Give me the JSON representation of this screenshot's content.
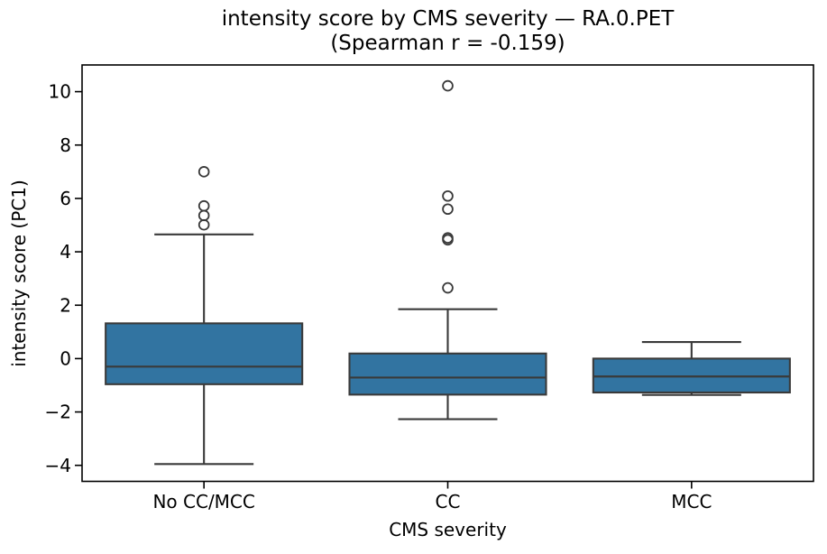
{
  "chart_data": {
    "type": "box",
    "title": "intensity score by CMS severity — RA.0.PET",
    "subtitle": "(Spearman r = -0.159)",
    "spearman_r": -0.159,
    "xlabel": "CMS severity",
    "ylabel": "intensity score (PC1)",
    "categories": [
      "No CC/MCC",
      "CC",
      "MCC"
    ],
    "ylim": [
      -4.6,
      11.0
    ],
    "yticks": [
      10,
      8,
      6,
      4,
      2,
      0,
      -2,
      -4
    ],
    "ytick_labels": [
      "10",
      "8",
      "6",
      "4",
      "2",
      "0",
      "−2",
      "−4"
    ],
    "grid": false,
    "legend": null,
    "boxes": [
      {
        "category": "No CC/MCC",
        "whisker_low": -3.95,
        "q1": -0.96,
        "median": -0.3,
        "q3": 1.32,
        "whisker_high": 4.65,
        "outliers": [
          5.01,
          5.36,
          5.72,
          7.0
        ]
      },
      {
        "category": "CC",
        "whisker_low": -2.27,
        "q1": -1.35,
        "median": -0.71,
        "q3": 0.19,
        "whisker_high": 1.85,
        "outliers": [
          2.65,
          4.45,
          4.52,
          5.6,
          6.09,
          10.22
        ]
      },
      {
        "category": "MCC",
        "whisker_low": -1.36,
        "q1": -1.27,
        "median": -0.67,
        "q3": 0.0,
        "whisker_high": 0.62,
        "outliers": []
      }
    ],
    "colors": {
      "box_fill": "#3274A1",
      "box_line": "#3A3A3A",
      "axis_line": "#000000",
      "text": "#000000",
      "background": "#FFFFFF"
    }
  }
}
